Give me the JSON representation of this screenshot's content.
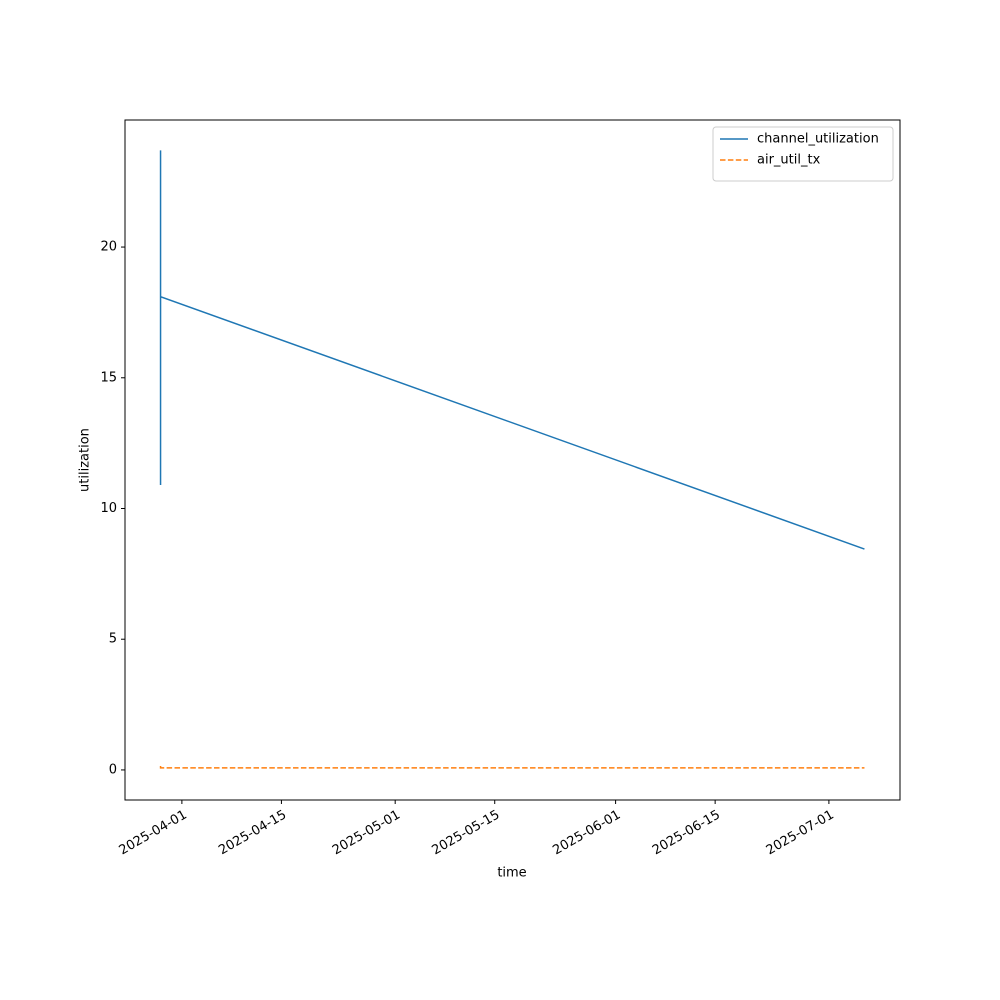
{
  "chart_data": {
    "type": "line",
    "xlabel": "time",
    "ylabel": "utilization",
    "x": [
      "2025-03-29",
      "2025-03-29",
      "2025-03-29",
      "2025-03-29",
      "2025-07-06"
    ],
    "series": [
      {
        "name": "channel_utilization",
        "color": "#1f77b4",
        "linestyle": "solid",
        "values": [
          23.7,
          10.9,
          22.6,
          18.1,
          8.45
        ]
      },
      {
        "name": "air_util_tx",
        "color": "#ff7f0e",
        "linestyle": "dashed",
        "values": [
          0.15,
          0.08,
          0.08,
          0.08,
          0.08
        ]
      }
    ],
    "xlim": [
      "2025-03-24",
      "2025-07-11"
    ],
    "xticks": [
      "2025-04-01",
      "2025-04-15",
      "2025-05-01",
      "2025-05-15",
      "2025-06-01",
      "2025-06-15",
      "2025-07-01"
    ],
    "ylim": [
      -1.15,
      24.86
    ],
    "yticks": [
      0,
      5,
      10,
      15,
      20
    ],
    "grid": false,
    "legend": "upper right"
  }
}
